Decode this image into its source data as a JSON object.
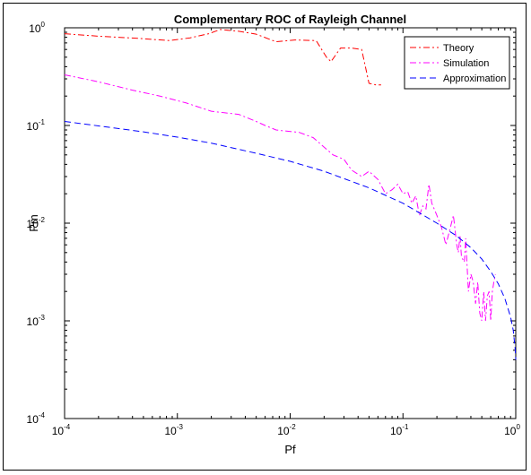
{
  "chart_data": {
    "type": "line",
    "title": "Complementary ROC of Rayleigh Channel",
    "xlabel": "Pf",
    "ylabel": "Pm",
    "xscale": "log",
    "yscale": "log",
    "xlim": [
      0.0001,
      1
    ],
    "ylim": [
      0.0001,
      1
    ],
    "xticks": [
      {
        "base": "10",
        "exp": "-4"
      },
      {
        "base": "10",
        "exp": "-3"
      },
      {
        "base": "10",
        "exp": "-2"
      },
      {
        "base": "10",
        "exp": "-1"
      },
      {
        "base": "10",
        "exp": "0"
      }
    ],
    "yticks": [
      {
        "base": "10",
        "exp": "-4"
      },
      {
        "base": "10",
        "exp": "-3"
      },
      {
        "base": "10",
        "exp": "-2"
      },
      {
        "base": "10",
        "exp": "-1"
      },
      {
        "base": "10",
        "exp": "0"
      }
    ],
    "legend_position": "top-right",
    "grid": false,
    "series": [
      {
        "name": "Theory",
        "color": "#ff0000",
        "style": "dash-dot",
        "x": [
          0.0001,
          0.0002,
          0.00045,
          0.00085,
          0.0013,
          0.0019,
          0.0024,
          0.0035,
          0.005,
          0.0075,
          0.011,
          0.017,
          0.019,
          0.021,
          0.023,
          0.028,
          0.031,
          0.035,
          0.043,
          0.05,
          0.058,
          0.064
        ],
        "y": [
          0.87,
          0.82,
          0.78,
          0.74,
          0.79,
          0.87,
          0.96,
          0.92,
          0.86,
          0.72,
          0.75,
          0.74,
          0.6,
          0.5,
          0.45,
          0.62,
          0.62,
          0.62,
          0.6,
          0.27,
          0.26,
          0.26
        ]
      },
      {
        "name": "Simulation",
        "color": "#ff00ff",
        "style": "dash-dot",
        "x": [
          0.0001,
          0.0002,
          0.0004,
          0.0007,
          0.0012,
          0.002,
          0.0026,
          0.0035,
          0.005,
          0.006,
          0.0075,
          0.009,
          0.012,
          0.016,
          0.02,
          0.024,
          0.03,
          0.035,
          0.043,
          0.05,
          0.06,
          0.07,
          0.08,
          0.09,
          0.1,
          0.11,
          0.12,
          0.13,
          0.14,
          0.15,
          0.16,
          0.17,
          0.18,
          0.2,
          0.22,
          0.24,
          0.26,
          0.28,
          0.3,
          0.31,
          0.32,
          0.33,
          0.35,
          0.36,
          0.38,
          0.4,
          0.42,
          0.44,
          0.46,
          0.48,
          0.5,
          0.52,
          0.54,
          0.56,
          0.58,
          0.6,
          0.62,
          0.64,
          0.66
        ],
        "y": [
          0.33,
          0.28,
          0.23,
          0.2,
          0.17,
          0.14,
          0.135,
          0.13,
          0.11,
          0.1,
          0.09,
          0.088,
          0.085,
          0.075,
          0.06,
          0.05,
          0.045,
          0.035,
          0.03,
          0.034,
          0.028,
          0.02,
          0.022,
          0.025,
          0.02,
          0.021,
          0.016,
          0.019,
          0.012,
          0.015,
          0.014,
          0.025,
          0.016,
          0.012,
          0.009,
          0.006,
          0.0085,
          0.012,
          0.006,
          0.005,
          0.0075,
          0.0045,
          0.004,
          0.007,
          0.002,
          0.003,
          0.0025,
          0.0015,
          0.0025,
          0.0012,
          0.001,
          0.002,
          0.001,
          0.0018,
          0.002,
          0.001,
          0.002,
          0.0025,
          0.003
        ]
      },
      {
        "name": "Approximation",
        "color": "#0000ff",
        "style": "dashed",
        "x": [
          0.0001,
          0.0002,
          0.0005,
          0.001,
          0.002,
          0.005,
          0.01,
          0.02,
          0.05,
          0.1,
          0.2,
          0.3,
          0.4,
          0.5,
          0.6,
          0.7,
          0.8,
          0.9,
          0.95,
          0.99,
          1.0
        ],
        "y": [
          0.11,
          0.099,
          0.086,
          0.076,
          0.066,
          0.052,
          0.043,
          0.034,
          0.023,
          0.016,
          0.01,
          0.0074,
          0.0056,
          0.0043,
          0.0032,
          0.0024,
          0.0017,
          0.0011,
          0.0008,
          0.0005,
          0.0004
        ]
      }
    ]
  }
}
